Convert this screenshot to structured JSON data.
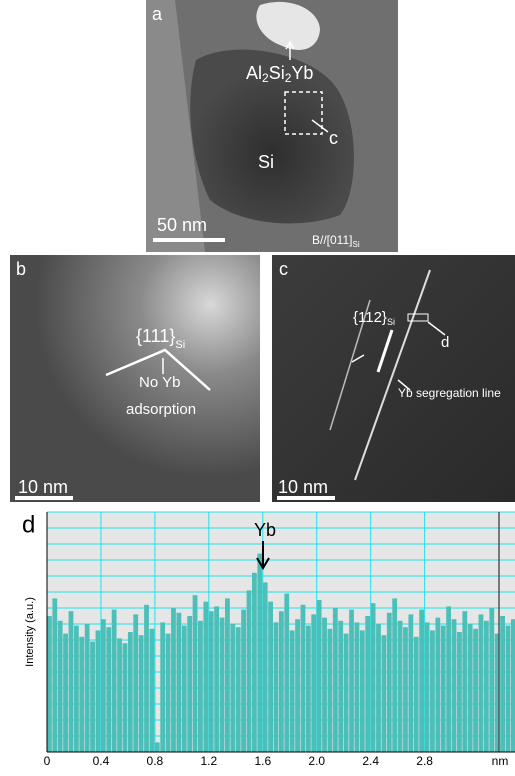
{
  "panels": {
    "a": {
      "label": "a",
      "phase_label": [
        "Al",
        "2",
        "Si",
        "2",
        "Yb"
      ],
      "box_label": "c",
      "region_label": "Si",
      "scale_bar": "50 nm",
      "zone_axis": [
        "B//[011]",
        "Si"
      ]
    },
    "b": {
      "label": "b",
      "plane": [
        "{111}",
        "Si"
      ],
      "note": [
        "No Yb",
        "adsorption"
      ],
      "scale_bar": "10 nm"
    },
    "c": {
      "label": "c",
      "plane": [
        "{112}",
        "Si"
      ],
      "box_label": "d",
      "line_label": "Yb segregation line",
      "scale_bar": "10 nm"
    }
  },
  "chart_data": {
    "type": "bar",
    "panel_label": "d",
    "y_label": "Intensity (a.u.)",
    "x_label": "nm",
    "annotation": "Yb",
    "x": [
      0.02,
      0.06,
      0.1,
      0.14,
      0.18,
      0.22,
      0.26,
      0.3,
      0.34,
      0.38,
      0.42,
      0.46,
      0.5,
      0.54,
      0.58,
      0.62,
      0.66,
      0.7,
      0.74,
      0.78,
      0.82,
      0.86,
      0.9,
      0.94,
      0.98,
      1.02,
      1.06,
      1.1,
      1.14,
      1.18,
      1.22,
      1.26,
      1.3,
      1.34,
      1.38,
      1.42,
      1.46,
      1.5,
      1.54,
      1.58,
      1.62,
      1.66,
      1.7,
      1.74,
      1.78,
      1.82,
      1.86,
      1.9,
      1.94,
      1.98,
      2.02,
      2.06,
      2.1,
      2.14,
      2.18,
      2.22,
      2.26,
      2.3,
      2.34,
      2.38,
      2.42,
      2.46,
      2.5,
      2.54,
      2.58,
      2.62,
      2.66,
      2.7,
      2.74,
      2.78,
      2.82,
      2.86,
      2.9,
      2.94,
      2.98,
      3.02,
      3.06,
      3.1,
      3.14,
      3.18,
      3.22,
      3.26,
      3.3,
      3.34,
      3.38,
      3.42,
      3.46
    ],
    "values": [
      8.5,
      9.6,
      8.2,
      7.4,
      8.8,
      7.9,
      7.2,
      8.0,
      6.9,
      7.6,
      8.3,
      7.8,
      8.9,
      7.1,
      6.8,
      7.5,
      8.6,
      7.3,
      9.2,
      7.7,
      0.6,
      8.1,
      7.4,
      9.0,
      8.7,
      7.9,
      8.5,
      9.8,
      8.2,
      9.4,
      8.8,
      9.1,
      8.4,
      9.6,
      8.0,
      7.8,
      8.9,
      10.1,
      11.2,
      12.4,
      10.6,
      9.4,
      8.1,
      8.8,
      9.9,
      7.6,
      8.3,
      9.2,
      7.9,
      8.6,
      9.5,
      8.4,
      7.7,
      9.0,
      8.2,
      7.4,
      8.9,
      8.1,
      7.6,
      8.5,
      9.3,
      8.0,
      7.3,
      8.7,
      9.6,
      8.2,
      7.8,
      8.6,
      7.2,
      8.9,
      8.1,
      7.6,
      8.4,
      7.9,
      9.1,
      8.3,
      7.5,
      8.8,
      8.0,
      7.7,
      8.6,
      8.2,
      9.0,
      7.4,
      8.5,
      7.9,
      8.3
    ],
    "color": "#4cbfb9",
    "background": "#e6e6e6",
    "grid_color": "#19e3ec",
    "xlim": [
      0,
      3.47
    ],
    "ylim": [
      0,
      15
    ],
    "xticks": [
      0,
      0.4,
      0.8,
      1.2,
      1.6,
      {
        "value": 2,
        "label": "2.0"
      },
      2.4,
      2.8
    ],
    "ygrid": [
      0,
      1,
      2,
      3,
      4,
      5,
      6,
      7,
      8,
      9,
      10,
      11,
      12,
      13,
      14,
      15
    ],
    "grid": true
  }
}
